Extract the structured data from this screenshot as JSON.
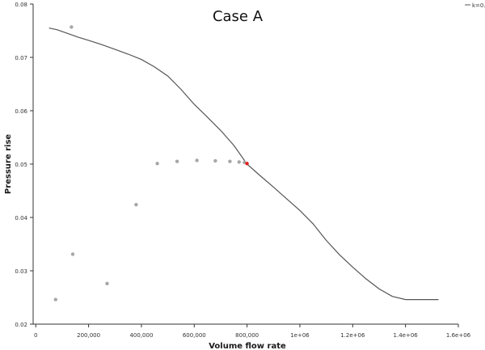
{
  "chart_data": {
    "type": "scatter",
    "title": "Case A",
    "xlabel": "Volume flow rate",
    "ylabel": "Pressure rise",
    "xlim": [
      -10000,
      1600000
    ],
    "ylim": [
      0.02,
      0.08
    ],
    "x_ticks": [
      {
        "value": 0,
        "label": "0"
      },
      {
        "value": 200000,
        "label": "200,000"
      },
      {
        "value": 400000,
        "label": "400,000"
      },
      {
        "value": 600000,
        "label": "600,000"
      },
      {
        "value": 800000,
        "label": "800,000"
      },
      {
        "value": 1000000,
        "label": "1e+06"
      },
      {
        "value": 1200000,
        "label": "1.2e+06"
      },
      {
        "value": 1400000,
        "label": "1.4e+06"
      },
      {
        "value": 1600000,
        "label": "1.6e+06"
      }
    ],
    "y_ticks": [
      {
        "value": 0.02,
        "label": "0.02"
      },
      {
        "value": 0.03,
        "label": "0.03"
      },
      {
        "value": 0.04,
        "label": "0.04"
      },
      {
        "value": 0.05,
        "label": "0.05"
      },
      {
        "value": 0.06,
        "label": "0.06"
      },
      {
        "value": 0.07,
        "label": "0.07"
      },
      {
        "value": 0.08,
        "label": "0.08"
      }
    ],
    "grid": false,
    "legend": {
      "position": "top-right",
      "label": "k=0.0"
    },
    "series": [
      {
        "name": "k=0.0",
        "kind": "line",
        "color": "#555555",
        "points": [
          [
            50000,
            0.0755
          ],
          [
            80000,
            0.0752
          ],
          [
            120000,
            0.0745
          ],
          [
            160000,
            0.0738
          ],
          [
            200000,
            0.0732
          ],
          [
            250000,
            0.0724
          ],
          [
            300000,
            0.0715
          ],
          [
            350000,
            0.0706
          ],
          [
            400000,
            0.0696
          ],
          [
            450000,
            0.0682
          ],
          [
            500000,
            0.0665
          ],
          [
            550000,
            0.064
          ],
          [
            600000,
            0.0612
          ],
          [
            650000,
            0.0588
          ],
          [
            700000,
            0.0563
          ],
          [
            750000,
            0.0535
          ],
          [
            800000,
            0.05
          ],
          [
            850000,
            0.0478
          ],
          [
            900000,
            0.0457
          ],
          [
            950000,
            0.0435
          ],
          [
            1000000,
            0.0413
          ],
          [
            1050000,
            0.0388
          ],
          [
            1100000,
            0.0357
          ],
          [
            1150000,
            0.033
          ],
          [
            1200000,
            0.0307
          ],
          [
            1250000,
            0.0285
          ],
          [
            1300000,
            0.0266
          ],
          [
            1350000,
            0.0252
          ],
          [
            1400000,
            0.0246
          ],
          [
            1450000,
            0.0246
          ],
          [
            1525000,
            0.0246
          ]
        ]
      },
      {
        "name": "",
        "kind": "points",
        "color": "#a6a6a6",
        "points": [
          [
            75000,
            0.0246
          ],
          [
            135000,
            0.0757
          ],
          [
            140000,
            0.0331
          ],
          [
            270000,
            0.0276
          ],
          [
            380000,
            0.0424
          ],
          [
            460000,
            0.0501
          ],
          [
            535000,
            0.0505
          ],
          [
            610000,
            0.0507
          ],
          [
            680000,
            0.0506
          ],
          [
            735000,
            0.0505
          ],
          [
            770000,
            0.0504
          ],
          [
            790000,
            0.0503
          ]
        ]
      },
      {
        "name": "",
        "kind": "points",
        "color": "#e02020",
        "points": [
          [
            800000,
            0.0501
          ]
        ]
      }
    ]
  }
}
